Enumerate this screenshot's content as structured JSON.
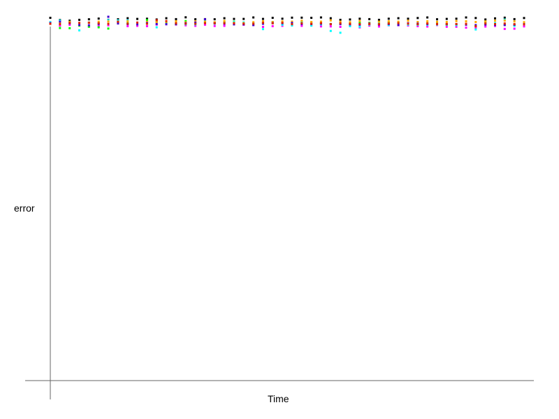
{
  "chart_data": {
    "type": "scatter",
    "title": "",
    "xlabel": "Time",
    "ylabel": "error",
    "grid": false,
    "legend": "none",
    "x": [
      0,
      1,
      2,
      3,
      4,
      5,
      6,
      7,
      8,
      9,
      10,
      11,
      12,
      13,
      14,
      15,
      16,
      17,
      18,
      19,
      20,
      21,
      22,
      23,
      24,
      25,
      26,
      27,
      28,
      29,
      30,
      31,
      32,
      33,
      34,
      35,
      36,
      37,
      38,
      39,
      40,
      41,
      42,
      43,
      44,
      45,
      46,
      47,
      48,
      49
    ],
    "series": [
      {
        "color": "#000000",
        "values": [
          2.1,
          0.9,
          0.5,
          1.0,
          1.3,
          1.7,
          1.0,
          1.3,
          1.9,
          1.5,
          1.6,
          1.2,
          1.9,
          1.4,
          2.4,
          1.3,
          1.4,
          1.3,
          1.9,
          1.5,
          1.5,
          2.3,
          1.5,
          2.1,
          1.6,
          2.2,
          2.2,
          2.1,
          2.3,
          1.9,
          1.0,
          1.2,
          1.6,
          1.4,
          1.0,
          1.6,
          1.9,
          1.6,
          2.0,
          2.3,
          1.3,
          1.5,
          1.6,
          2.3,
          2.0,
          1.2,
          1.8,
          2.2,
          1.4,
          2.0
        ]
      },
      {
        "color": "#ff00ff",
        "values": [
          -0.8,
          -2.2,
          -1.7,
          -2.1,
          -2.7,
          -2.4,
          -2.0,
          -0.1,
          -2.5,
          -2.3,
          -2.5,
          -1.6,
          -1.5,
          -1.6,
          -2.0,
          -2.3,
          -1.7,
          -2.4,
          -2.3,
          -1.4,
          -1.7,
          -1.8,
          -2.9,
          -2.5,
          -2.3,
          -1.8,
          -2.3,
          -2.0,
          -2.6,
          -2.6,
          -2.9,
          -2.3,
          -3.2,
          -2.2,
          -2.7,
          -2.0,
          -2.0,
          -2.1,
          -2.5,
          -2.7,
          -1.9,
          -2.8,
          -2.8,
          -3.3,
          -3.4,
          -2.7,
          -2.4,
          -4.0,
          -3.9,
          -2.6
        ]
      },
      {
        "color": "#00ff00",
        "values": [
          -1.0,
          -3.5,
          -3.6,
          -2.2,
          -2.8,
          -3.1,
          -3.8,
          -0.2,
          -1.0,
          -1.2,
          0.9,
          -0.1,
          -0.5,
          -1.4,
          0.3,
          -1.0,
          -0.6,
          -0.5,
          -0.1,
          0.0,
          -1.3,
          -1.2,
          -0.6,
          -0.5,
          -0.9,
          -1.0,
          -0.1,
          -0.7,
          -1.1,
          -1.3,
          -1.1,
          -1.2,
          -0.6,
          -0.6,
          -0.1,
          -0.4,
          -0.6,
          -1.4,
          -1.6,
          -1.1,
          -1.1,
          -1.7,
          -1.6,
          -1.5,
          -2.5,
          -0.3,
          -1.8,
          -1.6,
          -1.8,
          -0.5
        ]
      },
      {
        "color": "#00ffff",
        "values": [
          -0.3,
          0.6,
          -0.1,
          -4.8,
          -0.5,
          -1.1,
          0.8,
          0.7,
          0.6,
          -0.7,
          -0.4,
          -3.1,
          -1.4,
          -1.1,
          -1.4,
          -1.5,
          0.4,
          -1.1,
          -0.4,
          -0.2,
          -0.4,
          -0.6,
          -4.1,
          -0.2,
          -1.7,
          -2.1,
          -0.6,
          -2.2,
          -1.5,
          -5.1,
          -6.1,
          -2.5,
          -2.8,
          -1.7,
          -1.2,
          -1.9,
          -1.8,
          -1.6,
          -1.6,
          -1.7,
          -1.6,
          -1.6,
          -1.9,
          -1.5,
          -4.3,
          -1.3,
          -0.8,
          1.1,
          -2.3,
          -1.4
        ]
      },
      {
        "color": "#ffaa00",
        "values": [
          -0.9,
          -0.5,
          -0.1,
          -0.7,
          -0.5,
          0.0,
          0.1,
          -0.2,
          0.2,
          -0.9,
          -0.1,
          -0.2,
          0.0,
          0.2,
          -0.4,
          0.1,
          0.0,
          -0.3,
          0.4,
          -0.7,
          -0.8,
          -0.3,
          0.2,
          -0.2,
          0.1,
          0.0,
          0.5,
          -0.2,
          0.0,
          0.7,
          0.0,
          -0.3,
          0.4,
          -0.8,
          0.0,
          0.2,
          0.0,
          0.5,
          -0.2,
          0.2,
          -0.1,
          -0.2,
          0.3,
          0.2,
          -0.2,
          0.1,
          0.5,
          0.6,
          0.1,
          -0.3
        ]
      },
      {
        "color": "#4400cc",
        "values": [
          -0.8,
          0.0,
          -0.9,
          -1.8,
          -2.0,
          -1.3,
          2.7,
          -1.0,
          -1.3,
          -1.5,
          -0.8,
          -1.3,
          -1.4,
          -1.3,
          -0.9,
          -0.5,
          1.3,
          -0.9,
          -1.1,
          -1.5,
          -1.5,
          -1.9,
          -1.2,
          -0.8,
          -0.9,
          -0.7,
          -1.3,
          -1.3,
          -1.1,
          -1.4,
          -1.4,
          -1.5,
          -1.7,
          -1.1,
          -1.6,
          -1.3,
          -1.8,
          -0.9,
          -1.1,
          -1.3,
          -1.3,
          -1.4,
          -1.4,
          -1.7,
          -1.9,
          -1.6,
          -1.8,
          -1.9,
          -1.7,
          -1.4
        ]
      },
      {
        "color": "#dd2200",
        "values": [
          -1.2,
          -1.4,
          -0.7,
          -0.7,
          -0.6,
          -0.9,
          -1.2,
          0.0,
          -1.1,
          -0.5,
          -1.2,
          0.8,
          0.3,
          -0.9,
          -1.1,
          -1.2,
          -0.8,
          -0.9,
          -0.8,
          -0.9,
          -1.1,
          -1.1,
          -0.6,
          -0.9,
          -0.6,
          -1.4,
          -0.9,
          -1.2,
          -0.8,
          -1.4,
          -0.9,
          -1.2,
          -1.3,
          -1.4,
          -1.4,
          -1.0,
          -0.8,
          -1.1,
          -1.4,
          -1.0,
          -1.4,
          -1.3,
          -1.3,
          -1.2,
          -2.5,
          -1.0,
          -1.3,
          -1.0,
          -1.4,
          -1.5
        ]
      }
    ]
  }
}
